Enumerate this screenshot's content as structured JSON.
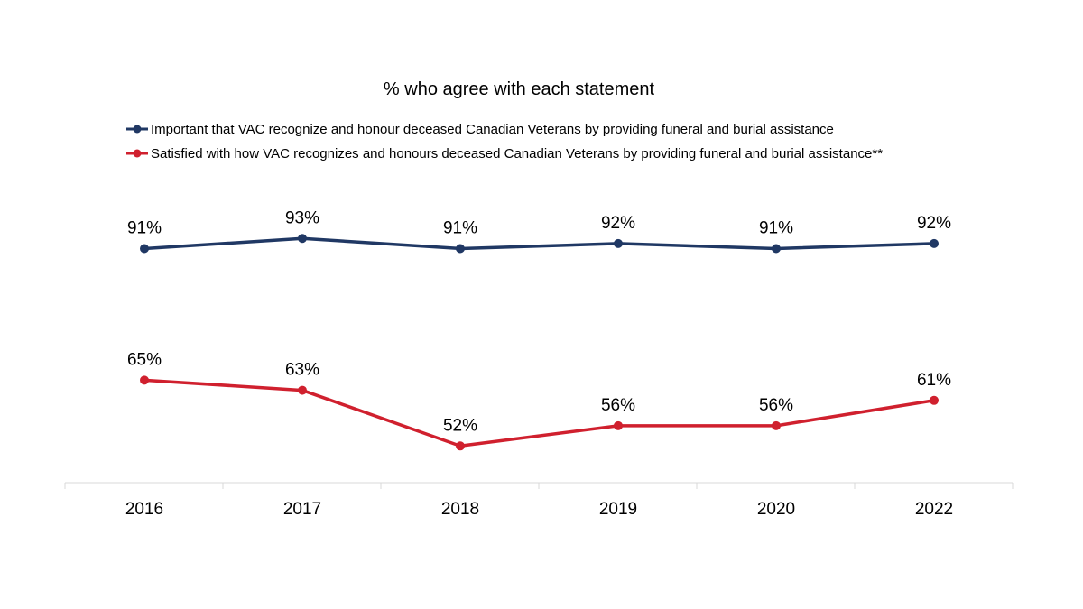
{
  "chart_data": {
    "type": "line",
    "title": "% who agree with each statement",
    "categories": [
      "2016",
      "2017",
      "2018",
      "2019",
      "2020",
      "2022"
    ],
    "ylim": [
      0,
      100
    ],
    "grid": false,
    "legend_placement": "top",
    "series": [
      {
        "name": "Important that VAC recognize and honour deceased Canadian Veterans by providing funeral and burial assistance",
        "color": "#203864",
        "values": [
          91,
          93,
          91,
          92,
          91,
          92
        ],
        "labels": [
          "91%",
          "93%",
          "91%",
          "92%",
          "91%",
          "92%"
        ]
      },
      {
        "name": "Satisfied with how VAC recognizes and honours deceased Canadian Veterans by providing funeral and burial assistance**",
        "color": "#D0202E",
        "values": [
          65,
          63,
          52,
          56,
          56,
          61
        ],
        "labels": [
          "65%",
          "63%",
          "52%",
          "56%",
          "56%",
          "61%"
        ]
      }
    ]
  }
}
